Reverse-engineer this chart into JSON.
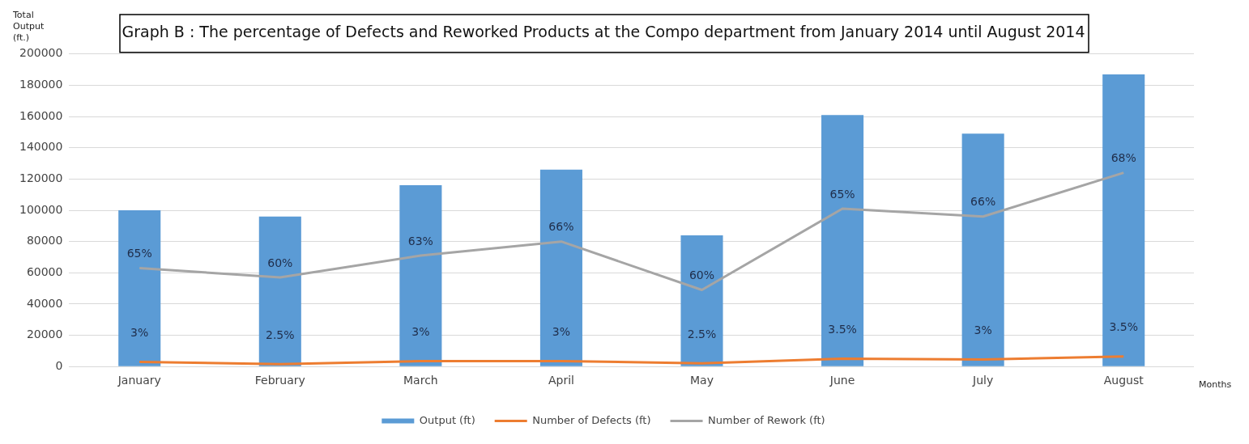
{
  "chart_data": {
    "type": "bar",
    "title": "Graph B : The percentage of Defects and Reworked Products at the Compo department from January 2014 until August 2014",
    "xlabel": "Months",
    "ylabel": "Total Output (ft.)",
    "categories": [
      "January",
      "February",
      "March",
      "April",
      "May",
      "June",
      "July",
      "August"
    ],
    "series": [
      {
        "name": "Output (ft)",
        "color": "#5b9bd5",
        "values": [
          100000,
          96000,
          116000,
          126000,
          84000,
          161000,
          149000,
          187000
        ]
      },
      {
        "name": "Number of Defects (ft)",
        "type": "line",
        "color": "#ed7d31",
        "values": [
          3000,
          1500,
          3500,
          3500,
          2000,
          5000,
          4500,
          6500
        ]
      },
      {
        "name": "Number of Rework (ft)",
        "type": "line",
        "color": "#a5a5a5",
        "values": [
          63000,
          57000,
          71000,
          80000,
          49000,
          101000,
          96000,
          124000
        ]
      }
    ],
    "annotations": [
      {
        "text": "3%",
        "x": "January",
        "y": 3000
      },
      {
        "text": "2.5%",
        "x": "February",
        "y": 1500
      },
      {
        "text": "3%",
        "x": "March",
        "y": 3500
      },
      {
        "text": "3%",
        "x": "April",
        "y": 3500
      },
      {
        "text": "2.5%",
        "x": "May",
        "y": 2000
      },
      {
        "text": "3.5%",
        "x": "June",
        "y": 5000
      },
      {
        "text": "3%",
        "x": "July",
        "y": 4500
      },
      {
        "text": "3.5%",
        "x": "August",
        "y": 6500
      },
      {
        "text": "65%",
        "x": "January",
        "y": 63000
      },
      {
        "text": "60%",
        "x": "February",
        "y": 57000
      },
      {
        "text": "63%",
        "x": "March",
        "y": 71000
      },
      {
        "text": "66%",
        "x": "April",
        "y": 80000
      },
      {
        "text": "60%",
        "x": "May",
        "y": 49000
      },
      {
        "text": "65%",
        "x": "June",
        "y": 101000
      },
      {
        "text": "66%",
        "x": "July",
        "y": 96000
      },
      {
        "text": "68%",
        "x": "August",
        "y": 124000
      }
    ],
    "ylim": [
      0,
      200000
    ],
    "yticks": [
      0,
      20000,
      40000,
      60000,
      80000,
      100000,
      120000,
      140000,
      160000,
      180000,
      200000
    ],
    "grid": "y",
    "legend": "bottom",
    "marker": "none",
    "line_style": "solid"
  }
}
